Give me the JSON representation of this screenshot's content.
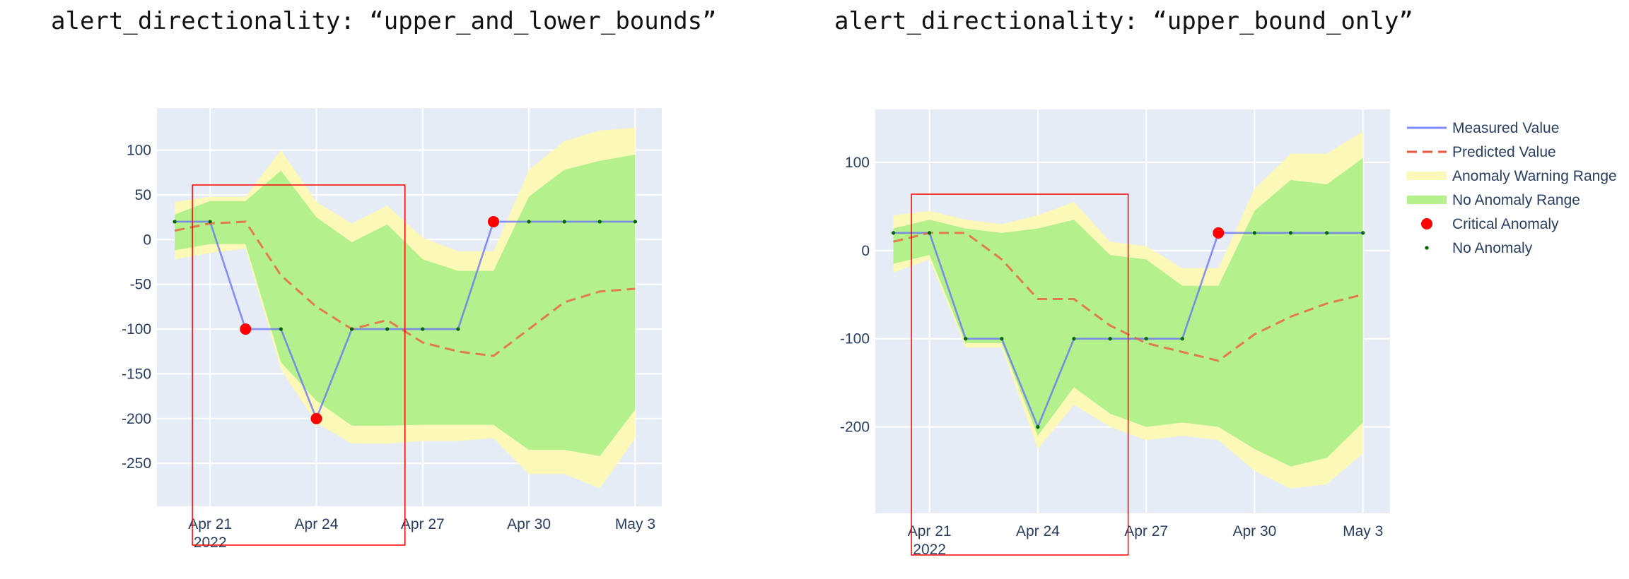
{
  "titles": [
    "alert_directionality: “upper_and_lower_bounds”",
    "alert_directionality: “upper_bound_only”"
  ],
  "legend": {
    "items": [
      {
        "key": "measured",
        "label": "Measured Value"
      },
      {
        "key": "predicted",
        "label": "Predicted Value"
      },
      {
        "key": "warning",
        "label": "Anomaly Warning Range"
      },
      {
        "key": "noanom",
        "label": "No Anomaly Range"
      },
      {
        "key": "critical",
        "label": "Critical Anomaly"
      },
      {
        "key": "normal",
        "label": "No Anomaly"
      }
    ]
  },
  "colors": {
    "plot_bg": "#e5ecf6",
    "grid": "#ffffff",
    "measured": "#636efa",
    "predicted": "#ef553b",
    "warning_band": "#fbf8b8",
    "noanom_band": "#b4f08c",
    "critical": "#ff0000",
    "normal_dot": "#006400",
    "highlight_box": "#ff0000",
    "tick_text": "#2a3f5f"
  },
  "chart_data": [
    {
      "type": "line",
      "title": "alert_directionality: “upper_and_lower_bounds”",
      "x": [
        "2022-04-20",
        "2022-04-21",
        "2022-04-22",
        "2022-04-23",
        "2022-04-24",
        "2022-04-25",
        "2022-04-26",
        "2022-04-27",
        "2022-04-28",
        "2022-04-29",
        "2022-04-30",
        "2022-05-01",
        "2022-05-02",
        "2022-05-03"
      ],
      "x_tick_labels": [
        "Apr 21",
        "Apr 24",
        "Apr 27",
        "Apr 30",
        "May 3"
      ],
      "x_tick_dates": [
        "2022-04-21",
        "2022-04-24",
        "2022-04-27",
        "2022-04-30",
        "2022-05-03"
      ],
      "x_year_label": "2022",
      "xlim": [
        "2022-04-19T12:00",
        "2022-05-03T18:00"
      ],
      "y_ticks": [
        100,
        50,
        0,
        -50,
        -100,
        -150,
        -200,
        -250
      ],
      "ylim": [
        -298,
        147
      ],
      "grid": true,
      "series": [
        {
          "name": "Measured Value",
          "values": [
            20,
            20,
            -100,
            -100,
            -200,
            -100,
            -100,
            -100,
            -100,
            20,
            20,
            20,
            20,
            20
          ]
        },
        {
          "name": "Predicted Value",
          "values": [
            10,
            18,
            20,
            -40,
            -75,
            -100,
            -90,
            -115,
            -125,
            -130,
            -100,
            -70,
            -58,
            -55
          ]
        }
      ],
      "bands": [
        {
          "name": "Anomaly Warning Range",
          "upper": [
            42,
            48,
            48,
            100,
            42,
            18,
            38,
            2,
            -13,
            -13,
            78,
            110,
            122,
            125
          ],
          "lower": [
            -22,
            -15,
            -10,
            -145,
            -205,
            -228,
            -228,
            -225,
            -225,
            -222,
            -262,
            -262,
            -278,
            -222
          ]
        },
        {
          "name": "No Anomaly Range",
          "upper": [
            28,
            43,
            43,
            77,
            25,
            -3,
            17,
            -22,
            -35,
            -35,
            48,
            78,
            88,
            95
          ],
          "lower": [
            -12,
            -5,
            -5,
            -137,
            -180,
            -208,
            -208,
            -207,
            -207,
            -207,
            -235,
            -235,
            -242,
            -190
          ]
        }
      ],
      "critical_anomalies": [
        {
          "x": "2022-04-22",
          "y": -100
        },
        {
          "x": "2022-04-24",
          "y": -200
        },
        {
          "x": "2022-04-29",
          "y": 20
        }
      ],
      "normal_points": [
        {
          "x": "2022-04-20",
          "y": 20
        },
        {
          "x": "2022-04-21",
          "y": 20
        },
        {
          "x": "2022-04-23",
          "y": -100
        },
        {
          "x": "2022-04-25",
          "y": -100
        },
        {
          "x": "2022-04-26",
          "y": -100
        },
        {
          "x": "2022-04-27",
          "y": -100
        },
        {
          "x": "2022-04-28",
          "y": -100
        },
        {
          "x": "2022-04-30",
          "y": 20
        },
        {
          "x": "2022-05-01",
          "y": 20
        },
        {
          "x": "2022-05-02",
          "y": 20
        },
        {
          "x": "2022-05-03",
          "y": 20
        }
      ],
      "highlight_range": {
        "x": [
          "2022-04-20T12:00",
          "2022-04-26T12:00"
        ]
      },
      "legend": "none"
    },
    {
      "type": "line",
      "title": "alert_directionality: “upper_bound_only”",
      "x": [
        "2022-04-20",
        "2022-04-21",
        "2022-04-22",
        "2022-04-23",
        "2022-04-24",
        "2022-04-25",
        "2022-04-26",
        "2022-04-27",
        "2022-04-28",
        "2022-04-29",
        "2022-04-30",
        "2022-05-01",
        "2022-05-02",
        "2022-05-03"
      ],
      "x_tick_labels": [
        "Apr 21",
        "Apr 24",
        "Apr 27",
        "Apr 30",
        "May 3"
      ],
      "x_tick_dates": [
        "2022-04-21",
        "2022-04-24",
        "2022-04-27",
        "2022-04-30",
        "2022-05-03"
      ],
      "x_year_label": "2022",
      "xlim": [
        "2022-04-19T12:00",
        "2022-05-03T18:00"
      ],
      "y_ticks": [
        100,
        0,
        -100,
        -200
      ],
      "ylim": [
        -298,
        160
      ],
      "grid": true,
      "series": [
        {
          "name": "Measured Value",
          "values": [
            20,
            20,
            -100,
            -100,
            -200,
            -100,
            -100,
            -100,
            -100,
            20,
            20,
            20,
            20,
            20
          ]
        },
        {
          "name": "Predicted Value",
          "values": [
            10,
            20,
            20,
            -10,
            -55,
            -55,
            -85,
            -105,
            -115,
            -125,
            -95,
            -75,
            -60,
            -50
          ]
        }
      ],
      "bands": [
        {
          "name": "Anomaly Warning Range",
          "upper": [
            40,
            45,
            35,
            30,
            40,
            55,
            10,
            5,
            -20,
            -20,
            70,
            110,
            110,
            135
          ],
          "lower": [
            -25,
            -10,
            -110,
            -110,
            -225,
            -175,
            -200,
            -215,
            -210,
            -215,
            -250,
            -270,
            -265,
            -230
          ]
        },
        {
          "name": "No Anomaly Range",
          "upper": [
            25,
            35,
            25,
            20,
            25,
            35,
            -5,
            -10,
            -40,
            -40,
            45,
            80,
            75,
            105
          ],
          "lower": [
            -15,
            -5,
            -105,
            -105,
            -210,
            -155,
            -185,
            -200,
            -195,
            -200,
            -225,
            -245,
            -235,
            -195
          ]
        }
      ],
      "critical_anomalies": [
        {
          "x": "2022-04-29",
          "y": 20
        }
      ],
      "normal_points": [
        {
          "x": "2022-04-20",
          "y": 20
        },
        {
          "x": "2022-04-21",
          "y": 20
        },
        {
          "x": "2022-04-22",
          "y": -100
        },
        {
          "x": "2022-04-23",
          "y": -100
        },
        {
          "x": "2022-04-24",
          "y": -200
        },
        {
          "x": "2022-04-25",
          "y": -100
        },
        {
          "x": "2022-04-26",
          "y": -100
        },
        {
          "x": "2022-04-27",
          "y": -100
        },
        {
          "x": "2022-04-28",
          "y": -100
        },
        {
          "x": "2022-04-30",
          "y": 20
        },
        {
          "x": "2022-05-01",
          "y": 20
        },
        {
          "x": "2022-05-02",
          "y": 20
        },
        {
          "x": "2022-05-03",
          "y": 20
        }
      ],
      "highlight_range": {
        "x": [
          "2022-04-20T12:00",
          "2022-04-26T12:00"
        ]
      },
      "legend": "right"
    }
  ]
}
